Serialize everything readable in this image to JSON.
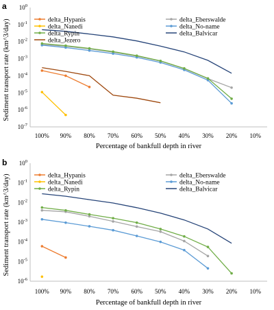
{
  "chart_data": [
    {
      "type": "line",
      "panel": "a",
      "title": "",
      "xlabel": "Percentage of bankfull depth in river",
      "ylabel": "Sediment transport rate (km^3/day)",
      "y_scale": "log",
      "ylim": [
        1e-07,
        1
      ],
      "y_ticks": [
        {
          "base": "10",
          "exp": "0"
        },
        {
          "base": "10",
          "exp": "-1"
        },
        {
          "base": "10",
          "exp": "-2"
        },
        {
          "base": "10",
          "exp": "-3"
        },
        {
          "base": "10",
          "exp": "-4"
        },
        {
          "base": "10",
          "exp": "-5"
        },
        {
          "base": "10",
          "exp": "-6"
        },
        {
          "base": "10",
          "exp": "-7"
        }
      ],
      "categories": [
        "100%",
        "90%",
        "80%",
        "70%",
        "60%",
        "50%",
        "40%",
        "30%",
        "20%",
        "10%"
      ],
      "grid": false,
      "legend_position": "top",
      "series": [
        {
          "name": "delta_Hypanis",
          "color": "#ED7D31",
          "markers": true,
          "values": [
            0.0002,
            0.0001,
            2.2e-05,
            null,
            null,
            null,
            null,
            null,
            null,
            null
          ]
        },
        {
          "name": "delta_Eberswalde",
          "color": "#A5A5A5",
          "markers": true,
          "values": [
            0.0068,
            0.0054,
            0.0038,
            0.0024,
            0.0014,
            0.00072,
            0.00026,
            6.8e-05,
            2e-05,
            null
          ]
        },
        {
          "name": "delta_Nanedi",
          "color": "#FFC000",
          "markers": true,
          "values": [
            1.1e-05,
            5e-07,
            null,
            null,
            null,
            null,
            null,
            null,
            null,
            null
          ]
        },
        {
          "name": "delta_No-name",
          "color": "#5B9BD5",
          "markers": true,
          "values": [
            0.0062,
            0.0045,
            0.003,
            0.002,
            0.0012,
            0.0006,
            0.00022,
            5.5e-05,
            2.4e-06,
            null
          ]
        },
        {
          "name": "delta_Rypin",
          "color": "#70AD47",
          "markers": true,
          "values": [
            0.0078,
            0.0058,
            0.004,
            0.0026,
            0.0015,
            0.00074,
            0.00027,
            7e-05,
            4.5e-06,
            null
          ]
        },
        {
          "name": "delta_Balvicar",
          "color": "#264478",
          "markers": false,
          "values": [
            0.05,
            0.04,
            0.028,
            0.019,
            0.011,
            0.0055,
            0.0025,
            0.0008,
            0.00014,
            null
          ]
        },
        {
          "name": "delta_Jezero",
          "color": "#9E480E",
          "markers": false,
          "values": [
            0.0003,
            0.00018,
            0.0001,
            7.2e-06,
            4.8e-06,
            2.6e-06,
            null,
            null,
            null,
            null
          ]
        }
      ]
    },
    {
      "type": "line",
      "panel": "b",
      "title": "",
      "xlabel": "Percentage of bankfull depth in river",
      "ylabel": "Sediment transport rate (km^3/day)",
      "y_scale": "log",
      "ylim": [
        1e-06,
        1
      ],
      "y_ticks": [
        {
          "base": "10",
          "exp": "0"
        },
        {
          "base": "10",
          "exp": "-1"
        },
        {
          "base": "10",
          "exp": "-2"
        },
        {
          "base": "10",
          "exp": "-3"
        },
        {
          "base": "10",
          "exp": "-4"
        },
        {
          "base": "10",
          "exp": "-5"
        },
        {
          "base": "10",
          "exp": "-6"
        }
      ],
      "categories": [
        "100%",
        "90%",
        "80%",
        "70%",
        "60%",
        "50%",
        "40%",
        "30%",
        "20%",
        "10%"
      ],
      "grid": false,
      "legend_position": "top",
      "series": [
        {
          "name": "delta_Hypanis",
          "color": "#ED7D31",
          "markers": true,
          "values": [
            6e-05,
            1.6e-05,
            null,
            null,
            null,
            null,
            null,
            null,
            null,
            null
          ]
        },
        {
          "name": "delta_Eberswalde",
          "color": "#A5A5A5",
          "markers": true,
          "values": [
            0.004,
            0.0034,
            0.002,
            0.0011,
            0.0006,
            0.00033,
            0.00011,
            1.9e-05,
            null,
            null
          ]
        },
        {
          "name": "delta_Nanedi",
          "color": "#FFC000",
          "markers": true,
          "values": [
            1.7e-06,
            null,
            null,
            null,
            null,
            null,
            null,
            null,
            null,
            null
          ]
        },
        {
          "name": "delta_No-name",
          "color": "#5B9BD5",
          "markers": true,
          "values": [
            0.0014,
            0.00095,
            0.00062,
            0.00039,
            0.0002,
            0.0001,
            3.8e-05,
            4.5e-06,
            null,
            null
          ]
        },
        {
          "name": "delta_Rypin",
          "color": "#70AD47",
          "markers": true,
          "values": [
            0.0056,
            0.004,
            0.0025,
            0.0016,
            0.00095,
            0.00045,
            0.00019,
            5.5e-05,
            2.5e-06,
            null
          ]
        },
        {
          "name": "delta_Balvicar",
          "color": "#264478",
          "markers": false,
          "values": [
            0.028,
            0.021,
            0.014,
            0.0095,
            0.0055,
            0.0029,
            0.0013,
            0.00045,
            8.5e-05,
            null
          ]
        }
      ]
    }
  ]
}
